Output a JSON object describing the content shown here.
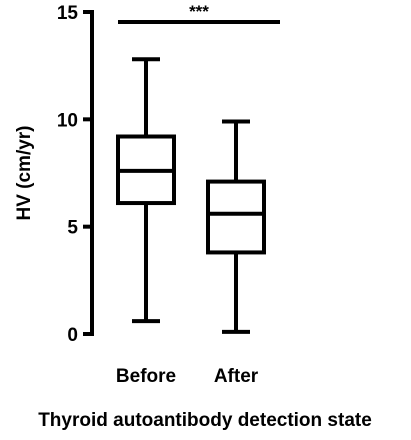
{
  "chart_data": {
    "type": "box",
    "title": "",
    "xlabel": "Thyroid autoantibody detection state",
    "ylabel": "HV (cm/yr)",
    "ylim": [
      0,
      15
    ],
    "yticks": [
      0,
      5,
      10,
      15
    ],
    "categories": [
      "Before",
      "After"
    ],
    "boxes": [
      {
        "category": "Before",
        "min": 0.6,
        "q1": 6.1,
        "median": 7.6,
        "q3": 9.2,
        "max": 12.8
      },
      {
        "category": "After",
        "min": 0.1,
        "q1": 3.8,
        "median": 5.6,
        "q3": 7.1,
        "max": 9.9
      }
    ],
    "significance": {
      "label": "***",
      "from": "Before",
      "to": "After"
    }
  }
}
